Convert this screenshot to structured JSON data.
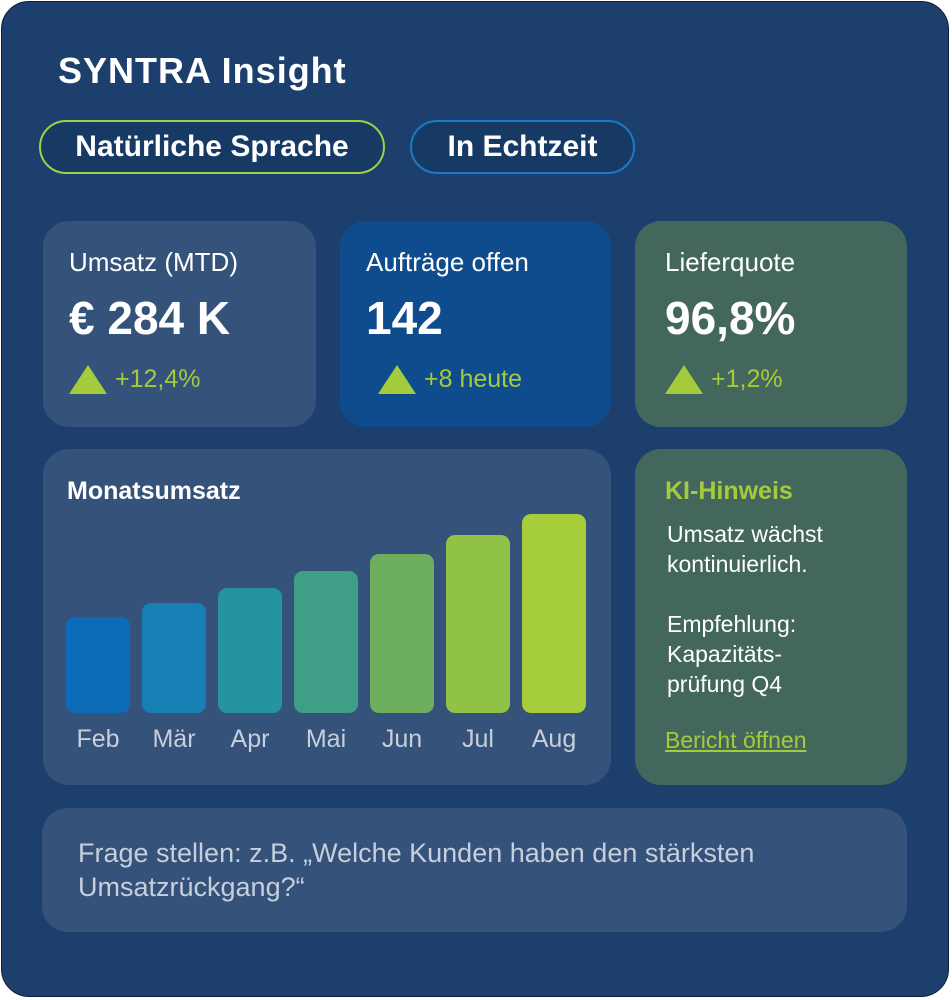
{
  "brand": {
    "title": "SYNTRA Insight"
  },
  "pills": {
    "natural_language": "Natürliche Sprache",
    "realtime": "In Echtzeit"
  },
  "kpis": [
    {
      "label": "Umsatz (MTD)",
      "value": "€ 284 K",
      "delta": "+12,4%",
      "trend": "up"
    },
    {
      "label": "Aufträge offen",
      "value": "142",
      "delta": "+8 heute",
      "trend": "up"
    },
    {
      "label": "Lieferquote",
      "value": "96,8%",
      "delta": "+1,2%",
      "trend": "up"
    }
  ],
  "chart_data": {
    "type": "bar",
    "title": "Monatsumsatz",
    "categories": [
      "Feb",
      "Mär",
      "Apr",
      "Mai",
      "Jun",
      "Jul",
      "Aug"
    ],
    "values": [
      96,
      110,
      125,
      142,
      159,
      178,
      199
    ],
    "ylim": [
      0,
      210
    ],
    "grid": false,
    "colors": [
      "#0b6bb8",
      "#177fb4",
      "#2593a0",
      "#3e9e86",
      "#6daf5f",
      "#90c247",
      "#a6cd3a"
    ]
  },
  "ai_hint": {
    "title": "KI-Hinweis",
    "text1": "Umsatz wächst kontinuierlich.",
    "text2": "Empfehlung: Kapazitäts-\nprüfung Q4",
    "link": "Bericht öffnen"
  },
  "query": {
    "placeholder": "Frage stellen: z.B. „Welche Kunden haben den stärksten Umsatzrückgang?“"
  },
  "colors": {
    "accent_green": "#a3cb3c",
    "accent_blue": "#1a79c9",
    "background": "#1d3f6d"
  }
}
